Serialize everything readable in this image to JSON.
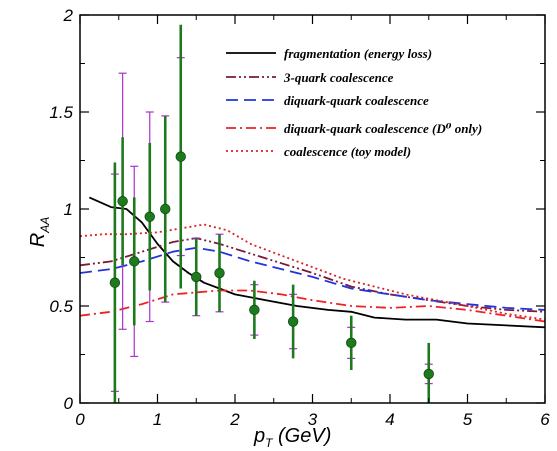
{
  "chart_data": {
    "type": "line",
    "title": "",
    "xlabel": {
      "main": "p",
      "sub": "T",
      "rest": " (GeV)"
    },
    "ylabel": {
      "main": "R",
      "sub": "AA"
    },
    "xlim": [
      0,
      6
    ],
    "ylim": [
      0,
      2
    ],
    "x_ticks": [
      "0",
      "1",
      "2",
      "3",
      "4",
      "5",
      "6"
    ],
    "y_ticks": [
      "0",
      "0.5",
      "1",
      "1.5",
      "2"
    ],
    "grid": false,
    "legend_position": "top-right",
    "series": [
      {
        "name": "fragmentation (energy loss)",
        "color": "#000000",
        "dash": "none",
        "x": [
          0.12,
          0.4,
          0.6,
          0.8,
          1.0,
          1.2,
          1.4,
          1.6,
          1.8,
          2.0,
          2.4,
          2.8,
          3.2,
          3.5,
          3.8,
          4.2,
          4.6,
          5.0,
          5.5,
          6.0
        ],
        "y": [
          1.06,
          1.01,
          1.0,
          0.93,
          0.82,
          0.73,
          0.67,
          0.62,
          0.59,
          0.56,
          0.53,
          0.5,
          0.48,
          0.47,
          0.44,
          0.43,
          0.43,
          0.41,
          0.4,
          0.39
        ]
      },
      {
        "name": "3-quark coalescence",
        "color": "#7a1a3a",
        "dash": "10,3,2,3,2,3",
        "x": [
          0.0,
          0.4,
          0.8,
          1.2,
          1.5,
          1.8,
          2.2,
          2.6,
          3.0,
          3.5,
          4.0,
          4.5,
          5.0,
          5.5,
          6.0
        ],
        "y": [
          0.71,
          0.73,
          0.78,
          0.83,
          0.85,
          0.82,
          0.77,
          0.72,
          0.67,
          0.6,
          0.56,
          0.53,
          0.5,
          0.48,
          0.47
        ]
      },
      {
        "name": "diquark-quark coalescence",
        "color": "#2233dd",
        "dash": "12,6",
        "x": [
          0.0,
          0.4,
          0.8,
          1.2,
          1.5,
          1.8,
          2.2,
          2.6,
          3.0,
          3.5,
          4.0,
          4.5,
          5.0,
          5.5,
          6.0
        ],
        "y": [
          0.67,
          0.69,
          0.73,
          0.78,
          0.8,
          0.78,
          0.73,
          0.69,
          0.65,
          0.59,
          0.56,
          0.53,
          0.51,
          0.49,
          0.48
        ]
      },
      {
        "name": "diquark-quark coalescence (D⁰ only)",
        "color": "#ee2222",
        "dash": "10,4,2,4",
        "x": [
          0.0,
          0.4,
          0.8,
          1.2,
          1.5,
          1.8,
          2.2,
          2.6,
          3.0,
          3.5,
          4.0,
          4.5,
          5.0,
          5.5,
          6.0
        ],
        "y": [
          0.45,
          0.47,
          0.51,
          0.56,
          0.57,
          0.58,
          0.58,
          0.56,
          0.53,
          0.5,
          0.49,
          0.5,
          0.48,
          0.45,
          0.42
        ]
      },
      {
        "name": "coalescence (toy model)",
        "color": "#dd2222",
        "dash": "2,3",
        "x": [
          0.0,
          0.3,
          0.6,
          1.0,
          1.3,
          1.6,
          1.9,
          2.2,
          2.6,
          3.0,
          3.4,
          3.8,
          4.2,
          4.6,
          5.0,
          5.5,
          6.0
        ],
        "y": [
          0.86,
          0.87,
          0.87,
          0.88,
          0.9,
          0.92,
          0.89,
          0.82,
          0.76,
          0.7,
          0.64,
          0.6,
          0.56,
          0.53,
          0.5,
          0.46,
          0.43
        ]
      }
    ],
    "data_points": {
      "marker_color": "#1f7a1f",
      "x": [
        0.45,
        0.55,
        0.7,
        0.9,
        1.1,
        1.3,
        1.5,
        1.8,
        2.25,
        2.75,
        3.5,
        4.5
      ],
      "y": [
        0.62,
        1.04,
        0.73,
        0.96,
        1.0,
        1.27,
        0.65,
        0.67,
        0.48,
        0.42,
        0.31,
        0.15
      ],
      "stat_error_color": "#1f7a1f",
      "stat_error": [
        0.62,
        0.33,
        0.33,
        0.38,
        0.48,
        0.68,
        0.2,
        0.2,
        0.15,
        0.19,
        0.14,
        0.16
      ],
      "sys_error_color": "#aa33cc",
      "sys_error": [
        0.56,
        0.66,
        0.49,
        0.54,
        0.48,
        0.51,
        0.2,
        0.2,
        0.13,
        0.14,
        0.08,
        0.05
      ]
    }
  }
}
